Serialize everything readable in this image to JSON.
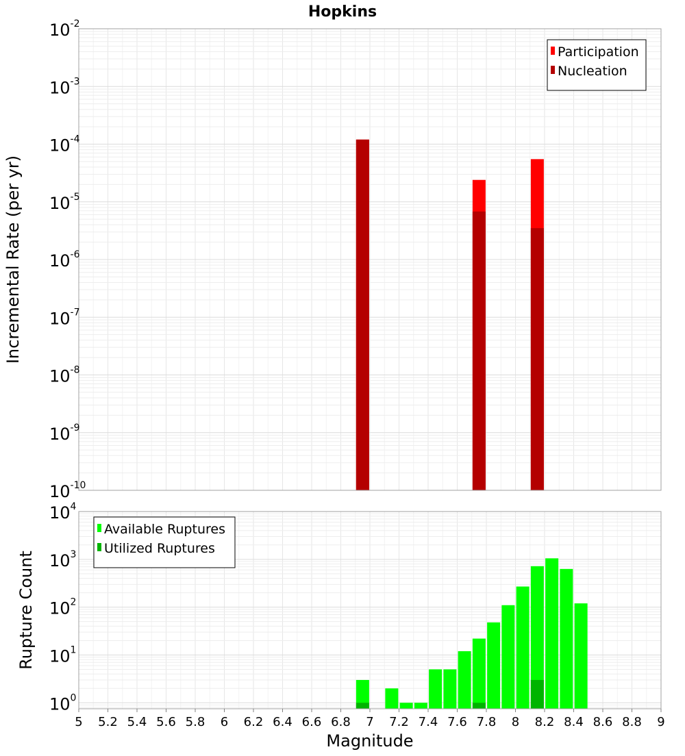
{
  "chart_data": [
    {
      "type": "bar",
      "title": "Hopkins",
      "xlabel": "Magnitude",
      "ylabel": "Incremental Rate (per yr)",
      "y_scale": "log",
      "ylim": [
        1e-10,
        0.01
      ],
      "xlim": [
        5,
        9
      ],
      "y_ticks": [
        {
          "base": "10",
          "exp": "-10"
        },
        {
          "base": "10",
          "exp": "-9"
        },
        {
          "base": "10",
          "exp": "-8"
        },
        {
          "base": "10",
          "exp": "-7"
        },
        {
          "base": "10",
          "exp": "-6"
        },
        {
          "base": "10",
          "exp": "-5"
        },
        {
          "base": "10",
          "exp": "-4"
        },
        {
          "base": "10",
          "exp": "-3"
        },
        {
          "base": "10",
          "exp": "-2"
        }
      ],
      "grid": true,
      "legend_position": "top-right",
      "series": [
        {
          "name": "Participation",
          "color": "#ff0000",
          "x": [
            6.95,
            7.75,
            8.15
          ],
          "values": [
            0.00012,
            2.4e-05,
            5.5e-05
          ]
        },
        {
          "name": "Nucleation",
          "color": "#b40000",
          "x": [
            6.95,
            7.75,
            8.15
          ],
          "values": [
            0.00012,
            6.8e-06,
            3.5e-06
          ]
        }
      ]
    },
    {
      "type": "bar",
      "xlabel": "Magnitude",
      "ylabel": "Rupture Count",
      "y_scale": "log",
      "ylim": [
        0.75,
        10000
      ],
      "xlim": [
        5,
        9
      ],
      "x_ticks": [
        "5",
        "5.2",
        "5.4",
        "5.6",
        "5.8",
        "6",
        "6.2",
        "6.4",
        "6.6",
        "6.8",
        "7",
        "7.2",
        "7.4",
        "7.6",
        "7.8",
        "8",
        "8.2",
        "8.4",
        "8.6",
        "8.8",
        "9"
      ],
      "y_ticks": [
        {
          "base": "10",
          "exp": "0"
        },
        {
          "base": "10",
          "exp": "1"
        },
        {
          "base": "10",
          "exp": "2"
        },
        {
          "base": "10",
          "exp": "3"
        },
        {
          "base": "10",
          "exp": "4"
        }
      ],
      "grid": true,
      "legend_position": "top-left",
      "series": [
        {
          "name": "Available Ruptures",
          "color": "#00ff00",
          "x": [
            6.95,
            7.15,
            7.25,
            7.35,
            7.45,
            7.55,
            7.65,
            7.75,
            7.85,
            7.95,
            8.05,
            8.15,
            8.25,
            8.35,
            8.45
          ],
          "values": [
            3,
            2,
            1,
            1,
            5,
            5,
            12,
            22,
            48,
            110,
            270,
            720,
            1050,
            630,
            120
          ]
        },
        {
          "name": "Utilized Ruptures",
          "color": "#00b400",
          "x": [
            6.95,
            7.75,
            8.15
          ],
          "values": [
            1,
            1,
            3
          ]
        }
      ]
    }
  ]
}
